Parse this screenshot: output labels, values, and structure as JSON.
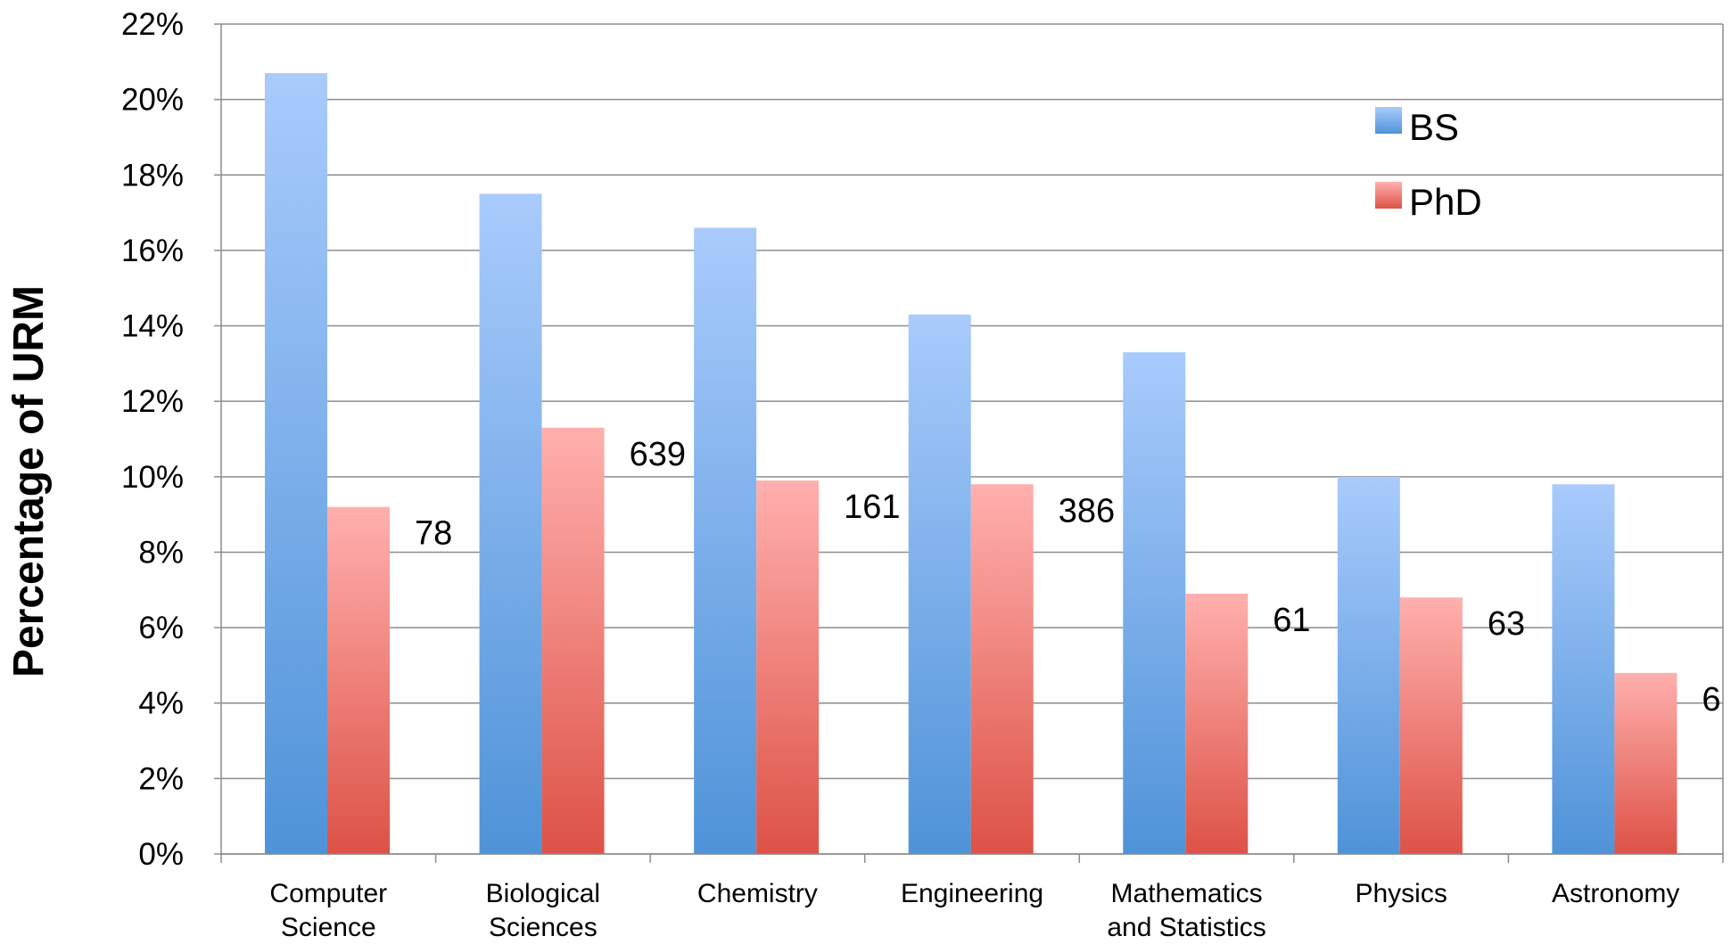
{
  "chart_data": {
    "type": "bar",
    "ylabel": "Percentage of URM",
    "ylim": [
      0,
      22
    ],
    "ytick_step": 2,
    "ytick_format": "percent",
    "grid": true,
    "legend_placement": "top-right",
    "categories": [
      [
        "Computer",
        "Science"
      ],
      [
        "Biological",
        "Sciences"
      ],
      [
        "Chemistry"
      ],
      [
        "Engineering"
      ],
      [
        "Mathematics",
        "and Statistics"
      ],
      [
        "Physics"
      ],
      [
        "Astronomy"
      ]
    ],
    "series": [
      {
        "name": "BS",
        "values": [
          20.7,
          17.5,
          16.6,
          14.3,
          13.3,
          10.0,
          9.8
        ],
        "color_top": "#a9cbfc",
        "color_bottom": "#4f93d8"
      },
      {
        "name": "PhD",
        "values": [
          9.2,
          11.3,
          9.9,
          9.8,
          6.9,
          6.8,
          4.8
        ],
        "color_top": "#ffb0ae",
        "color_bottom": "#dd5246"
      }
    ],
    "phd_counts": [
      "78",
      "639",
      "161",
      "386",
      "61",
      "63",
      "6"
    ]
  }
}
